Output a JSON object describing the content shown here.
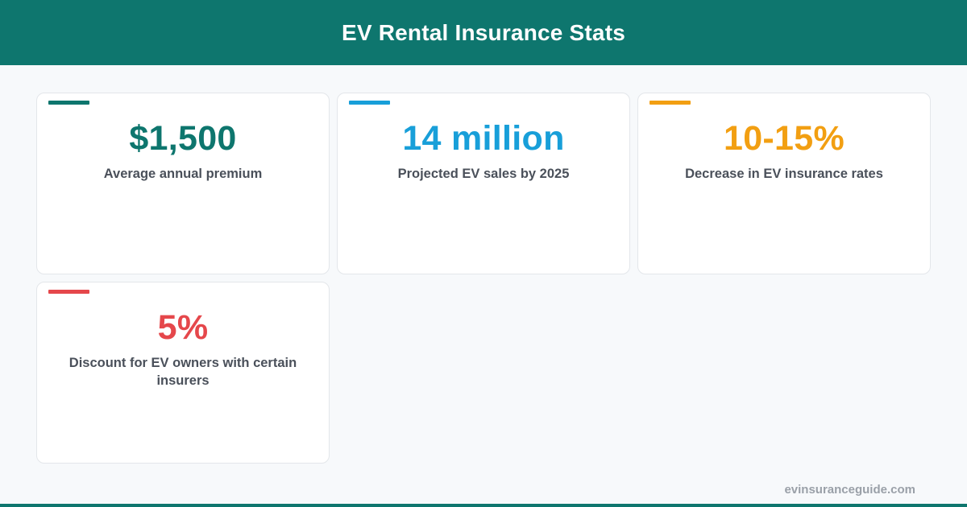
{
  "header": {
    "title": "EV Rental Insurance Stats"
  },
  "stats": [
    {
      "value": "$1,500",
      "label": "Average annual premium",
      "color": "#0e766e"
    },
    {
      "value": "14 million",
      "label": "Projected EV sales by 2025",
      "color": "#189fd9"
    },
    {
      "value": "10-15%",
      "label": "Decrease in EV insurance rates",
      "color": "#f29f12"
    },
    {
      "value": "5%",
      "label": "Discount for EV owners with certain insurers",
      "color": "#e5474b"
    }
  ],
  "footer": {
    "site": "evinsuranceguide.com"
  },
  "colors": {
    "brand": "#0e766e",
    "background": "#f7f9fb",
    "label_text": "#4a505a",
    "footer_text": "#9aa0a8"
  }
}
